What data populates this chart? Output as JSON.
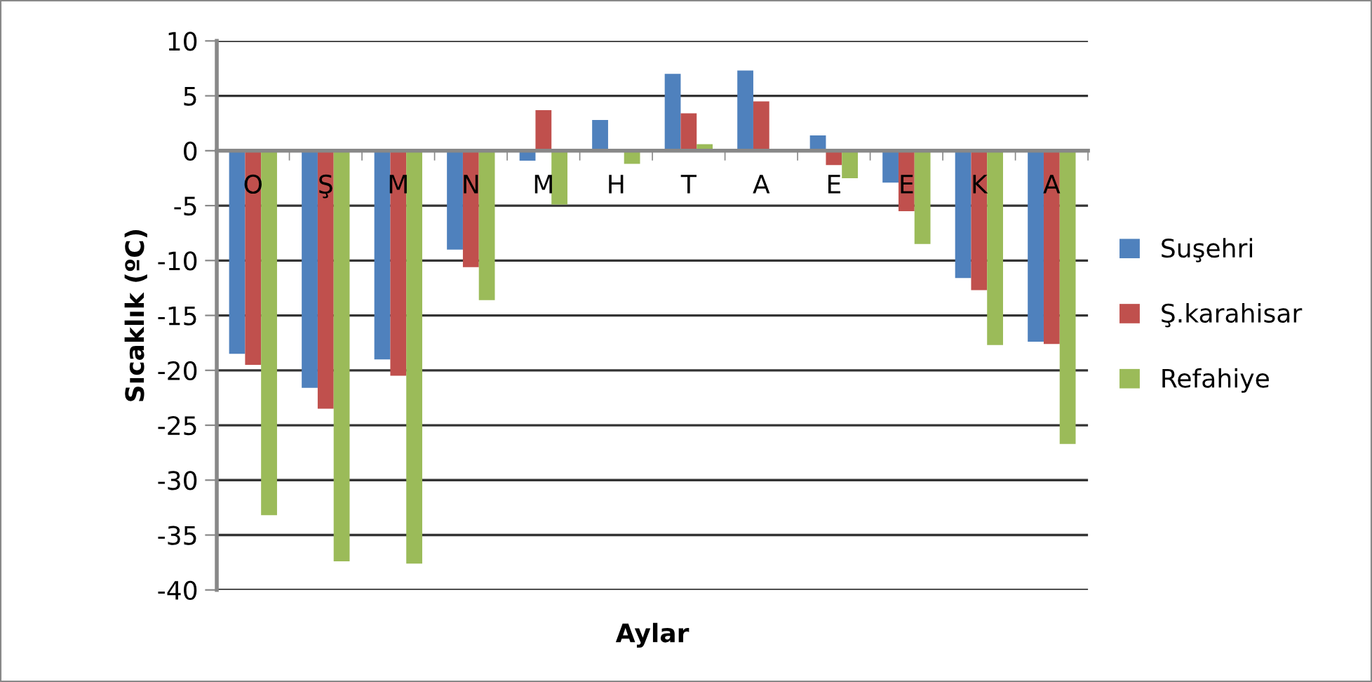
{
  "chart_data": {
    "type": "bar",
    "xlabel": "Aylar",
    "ylabel": "Sıcaklık (ºC)",
    "categories": [
      "O",
      "Ş",
      "M",
      "N",
      "M",
      "H",
      "T",
      "A",
      "E",
      "E",
      "K",
      "A"
    ],
    "series": [
      {
        "name": "Suşehri",
        "color": "#4f81bd",
        "values": [
          -18.5,
          -21.6,
          -19,
          -9,
          -0.9,
          2.8,
          7,
          7.3,
          1.4,
          -2.9,
          -11.6,
          -17.4
        ]
      },
      {
        "name": "Ş.karahisar",
        "color": "#c0504d",
        "values": [
          -19.5,
          -23.5,
          -20.5,
          -10.6,
          3.7,
          0,
          3.4,
          4.5,
          -1.3,
          -5.5,
          -12.7,
          -17.6
        ]
      },
      {
        "name": "Refahiye",
        "color": "#9bbb59",
        "values": [
          -33.2,
          -37.4,
          -37.6,
          -13.6,
          -4.9,
          -1.2,
          0.6,
          0,
          -2.5,
          -8.5,
          -17.7,
          -26.7
        ]
      }
    ],
    "ylim": [
      -40,
      10
    ],
    "yticks": [
      -40,
      -35,
      -30,
      -25,
      -20,
      -15,
      -10,
      -5,
      0,
      5,
      10
    ],
    "grid": "y",
    "legend": "right"
  }
}
